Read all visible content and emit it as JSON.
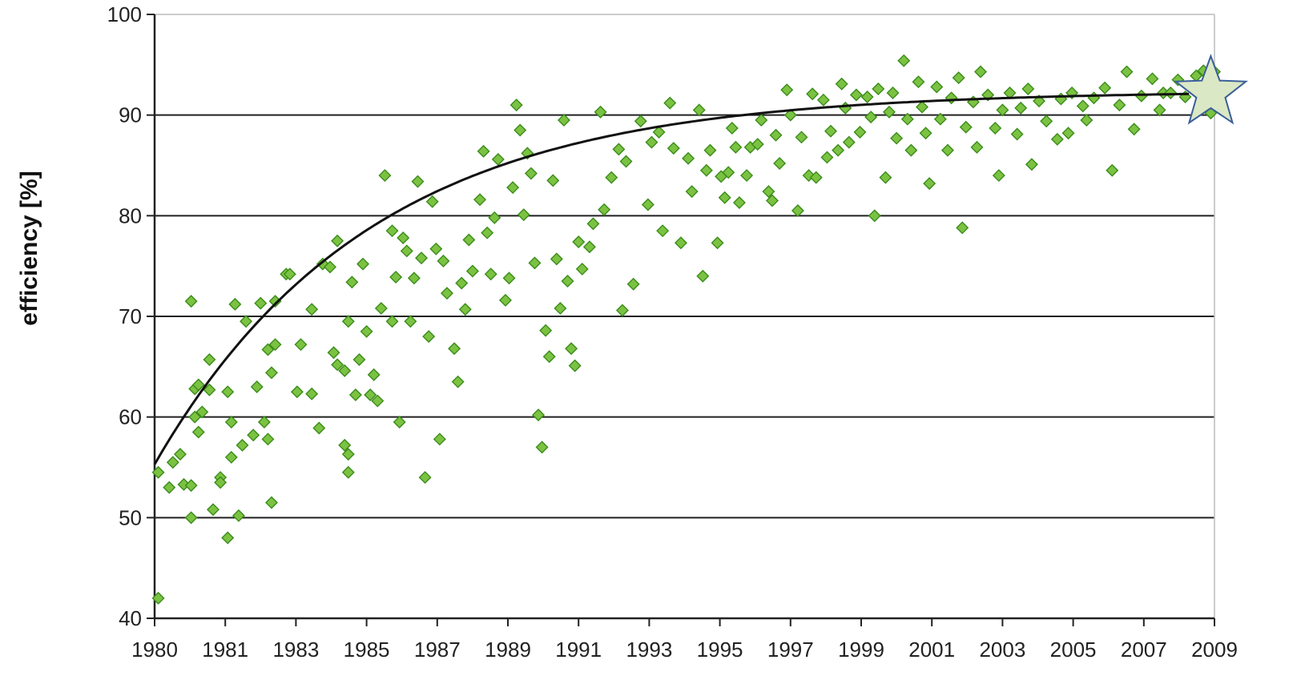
{
  "chart_data": {
    "type": "scatter",
    "title": "",
    "xlabel": "",
    "ylabel": "efficiency [%]",
    "xlim": [
      1980,
      2009
    ],
    "ylim": [
      40,
      100
    ],
    "x_ticks": [
      "1980",
      "1981",
      "1983",
      "1985",
      "1987",
      "1989",
      "1991",
      "1993",
      "1995",
      "1997",
      "1999",
      "2001",
      "2003",
      "2005",
      "2007",
      "2009"
    ],
    "y_ticks": [
      "40",
      "50",
      "60",
      "70",
      "80",
      "90",
      "100"
    ],
    "grid": "horizontal",
    "legend": "none",
    "series": [
      {
        "marker": "diamond",
        "color": "#7cc242",
        "edge_color": "#3a8c1a",
        "points": [
          [
            1980.1,
            42
          ],
          [
            1980.1,
            54.5
          ],
          [
            1980.4,
            53
          ],
          [
            1980.5,
            55.5
          ],
          [
            1980.7,
            56.3
          ],
          [
            1980.8,
            53.3
          ],
          [
            1981.0,
            50
          ],
          [
            1981.0,
            53.2
          ],
          [
            1981.0,
            71.5
          ],
          [
            1981.1,
            60
          ],
          [
            1981.1,
            62.8
          ],
          [
            1981.2,
            63.2
          ],
          [
            1981.2,
            58.5
          ],
          [
            1981.3,
            60.5
          ],
          [
            1981.5,
            65.7
          ],
          [
            1981.5,
            62.7
          ],
          [
            1981.6,
            50.8
          ],
          [
            1981.8,
            54
          ],
          [
            1981.8,
            53.5
          ],
          [
            1982.0,
            48
          ],
          [
            1982.0,
            62.5
          ],
          [
            1982.1,
            59.5
          ],
          [
            1982.1,
            56
          ],
          [
            1982.2,
            71.2
          ],
          [
            1982.3,
            50.2
          ],
          [
            1982.4,
            57.2
          ],
          [
            1982.5,
            69.5
          ],
          [
            1982.7,
            58.2
          ],
          [
            1982.8,
            63
          ],
          [
            1982.9,
            71.3
          ],
          [
            1983.0,
            59.5
          ],
          [
            1983.1,
            66.7
          ],
          [
            1983.1,
            57.8
          ],
          [
            1983.2,
            64.4
          ],
          [
            1983.2,
            51.5
          ],
          [
            1983.3,
            67.2
          ],
          [
            1983.3,
            71.5
          ],
          [
            1983.6,
            74.2
          ],
          [
            1983.7,
            74.2
          ],
          [
            1983.9,
            62.5
          ],
          [
            1984.0,
            67.2
          ],
          [
            1984.3,
            70.7
          ],
          [
            1984.3,
            62.3
          ],
          [
            1984.5,
            58.9
          ],
          [
            1984.6,
            75.2
          ],
          [
            1984.8,
            74.9
          ],
          [
            1984.9,
            66.4
          ],
          [
            1985.0,
            77.5
          ],
          [
            1985.0,
            65.2
          ],
          [
            1985.2,
            64.6
          ],
          [
            1985.2,
            57.2
          ],
          [
            1985.3,
            56.3
          ],
          [
            1985.3,
            54.5
          ],
          [
            1985.3,
            69.5
          ],
          [
            1985.4,
            73.4
          ],
          [
            1985.5,
            62.2
          ],
          [
            1985.6,
            65.7
          ],
          [
            1985.7,
            75.2
          ],
          [
            1985.8,
            68.5
          ],
          [
            1985.9,
            62.2
          ],
          [
            1986.0,
            64.2
          ],
          [
            1986.1,
            61.6
          ],
          [
            1986.2,
            70.8
          ],
          [
            1986.3,
            84
          ],
          [
            1986.5,
            78.5
          ],
          [
            1986.5,
            69.5
          ],
          [
            1986.6,
            73.9
          ],
          [
            1986.7,
            59.5
          ],
          [
            1986.8,
            77.8
          ],
          [
            1986.9,
            76.5
          ],
          [
            1987.0,
            69.5
          ],
          [
            1987.1,
            73.8
          ],
          [
            1987.2,
            83.4
          ],
          [
            1987.3,
            75.8
          ],
          [
            1987.4,
            54
          ],
          [
            1987.5,
            68
          ],
          [
            1987.6,
            81.4
          ],
          [
            1987.7,
            76.7
          ],
          [
            1987.8,
            57.8
          ],
          [
            1987.9,
            75.5
          ],
          [
            1988.0,
            72.3
          ],
          [
            1988.2,
            66.8
          ],
          [
            1988.3,
            63.5
          ],
          [
            1988.4,
            73.3
          ],
          [
            1988.5,
            70.7
          ],
          [
            1988.6,
            77.6
          ],
          [
            1988.7,
            74.5
          ],
          [
            1988.9,
            81.6
          ],
          [
            1989.0,
            86.4
          ],
          [
            1989.1,
            78.3
          ],
          [
            1989.2,
            74.2
          ],
          [
            1989.3,
            79.8
          ],
          [
            1989.4,
            85.6
          ],
          [
            1989.6,
            71.6
          ],
          [
            1989.7,
            73.8
          ],
          [
            1989.8,
            82.8
          ],
          [
            1989.9,
            91
          ],
          [
            1990.0,
            88.5
          ],
          [
            1990.1,
            80.1
          ],
          [
            1990.2,
            86.2
          ],
          [
            1990.3,
            84.2
          ],
          [
            1990.4,
            75.3
          ],
          [
            1990.5,
            60.2
          ],
          [
            1990.6,
            57
          ],
          [
            1990.7,
            68.6
          ],
          [
            1990.8,
            66
          ],
          [
            1990.9,
            83.5
          ],
          [
            1991.0,
            75.7
          ],
          [
            1991.1,
            70.8
          ],
          [
            1991.2,
            89.5
          ],
          [
            1991.3,
            73.5
          ],
          [
            1991.4,
            66.8
          ],
          [
            1991.5,
            65.1
          ],
          [
            1991.6,
            77.4
          ],
          [
            1991.7,
            74.7
          ],
          [
            1991.9,
            76.9
          ],
          [
            1992.0,
            79.2
          ],
          [
            1992.2,
            90.3
          ],
          [
            1992.3,
            80.6
          ],
          [
            1992.5,
            83.8
          ],
          [
            1992.7,
            86.6
          ],
          [
            1992.8,
            70.6
          ],
          [
            1992.9,
            85.4
          ],
          [
            1993.1,
            73.2
          ],
          [
            1993.3,
            89.4
          ],
          [
            1993.5,
            81.1
          ],
          [
            1993.6,
            87.3
          ],
          [
            1993.8,
            88.3
          ],
          [
            1993.9,
            78.5
          ],
          [
            1994.1,
            91.2
          ],
          [
            1994.2,
            86.7
          ],
          [
            1994.4,
            77.3
          ],
          [
            1994.6,
            85.7
          ],
          [
            1994.7,
            82.4
          ],
          [
            1994.9,
            90.5
          ],
          [
            1995.0,
            74
          ],
          [
            1995.1,
            84.5
          ],
          [
            1995.2,
            86.5
          ],
          [
            1995.4,
            77.3
          ],
          [
            1995.5,
            83.9
          ],
          [
            1995.6,
            81.8
          ],
          [
            1995.7,
            84.3
          ],
          [
            1995.8,
            88.7
          ],
          [
            1995.9,
            86.8
          ],
          [
            1996.0,
            81.3
          ],
          [
            1996.2,
            84
          ],
          [
            1996.3,
            86.8
          ],
          [
            1996.5,
            87.1
          ],
          [
            1996.6,
            89.5
          ],
          [
            1996.8,
            82.4
          ],
          [
            1996.9,
            81.5
          ],
          [
            1997.0,
            88
          ],
          [
            1997.1,
            85.2
          ],
          [
            1997.3,
            92.5
          ],
          [
            1997.4,
            90
          ],
          [
            1997.6,
            80.5
          ],
          [
            1997.7,
            87.8
          ],
          [
            1997.9,
            84
          ],
          [
            1998.0,
            92.1
          ],
          [
            1998.1,
            83.8
          ],
          [
            1998.3,
            91.5
          ],
          [
            1998.4,
            85.8
          ],
          [
            1998.5,
            88.4
          ],
          [
            1998.7,
            86.5
          ],
          [
            1998.8,
            93.1
          ],
          [
            1998.9,
            90.7
          ],
          [
            1999.0,
            87.3
          ],
          [
            1999.2,
            92
          ],
          [
            1999.3,
            88.3
          ],
          [
            1999.5,
            91.8
          ],
          [
            1999.6,
            89.8
          ],
          [
            1999.7,
            80
          ],
          [
            1999.8,
            92.6
          ],
          [
            2000.0,
            83.8
          ],
          [
            2000.1,
            90.3
          ],
          [
            2000.2,
            92.2
          ],
          [
            2000.3,
            87.7
          ],
          [
            2000.5,
            95.4
          ],
          [
            2000.6,
            89.6
          ],
          [
            2000.7,
            86.5
          ],
          [
            2000.9,
            93.3
          ],
          [
            2001.0,
            90.8
          ],
          [
            2001.1,
            88.2
          ],
          [
            2001.2,
            83.2
          ],
          [
            2001.4,
            92.8
          ],
          [
            2001.5,
            89.6
          ],
          [
            2001.7,
            86.5
          ],
          [
            2001.8,
            91.7
          ],
          [
            2002.0,
            93.7
          ],
          [
            2002.1,
            78.8
          ],
          [
            2002.2,
            88.8
          ],
          [
            2002.4,
            91.3
          ],
          [
            2002.5,
            86.8
          ],
          [
            2002.6,
            94.3
          ],
          [
            2002.8,
            92
          ],
          [
            2003.0,
            88.7
          ],
          [
            2003.1,
            84
          ],
          [
            2003.2,
            90.5
          ],
          [
            2003.4,
            92.2
          ],
          [
            2003.6,
            88.1
          ],
          [
            2003.7,
            90.7
          ],
          [
            2003.9,
            92.6
          ],
          [
            2004.0,
            85.1
          ],
          [
            2004.2,
            91.4
          ],
          [
            2004.4,
            89.4
          ],
          [
            2004.7,
            87.6
          ],
          [
            2004.8,
            91.6
          ],
          [
            2005.0,
            88.2
          ],
          [
            2005.1,
            92.2
          ],
          [
            2005.4,
            90.9
          ],
          [
            2005.5,
            89.5
          ],
          [
            2005.7,
            91.7
          ],
          [
            2006.0,
            92.7
          ],
          [
            2006.2,
            84.5
          ],
          [
            2006.4,
            91
          ],
          [
            2006.6,
            94.3
          ],
          [
            2006.8,
            88.6
          ],
          [
            2007.0,
            91.9
          ],
          [
            2007.3,
            93.6
          ],
          [
            2007.5,
            90.5
          ],
          [
            2007.6,
            92.2
          ],
          [
            2007.8,
            92.2
          ],
          [
            2008.0,
            93.5
          ],
          [
            2008.2,
            91.8
          ],
          [
            2008.5,
            93.9
          ],
          [
            2008.7,
            94.4
          ],
          [
            2008.9,
            90.2
          ],
          [
            2009.0,
            94.3
          ]
        ]
      },
      {
        "type": "line",
        "color": "#111111",
        "trend": {
          "form": "exponential-saturation",
          "asymptote": 92.4,
          "start": 55.3,
          "rate": 0.17
        }
      }
    ],
    "highlight_marker": {
      "shape": "star",
      "year": 2008.9,
      "value": 92.2,
      "fill": "#dbe8c5",
      "stroke": "#3a5f9a"
    }
  }
}
